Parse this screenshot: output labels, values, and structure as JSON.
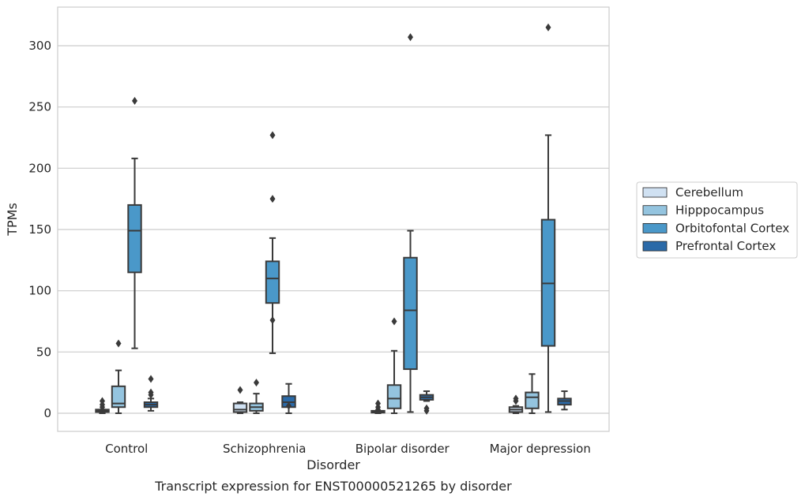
{
  "chart_data": {
    "type": "box",
    "title": "",
    "caption": "Transcript expression for ENST00000521265 by disorder",
    "xlabel": "Disorder",
    "ylabel": "TPMs",
    "ylim": [
      -15,
      332
    ],
    "yticks": [
      0,
      50,
      100,
      150,
      200,
      250,
      300
    ],
    "grid": "horizontal",
    "legend_position": "right",
    "categories": [
      "Control",
      "Schizophrenia",
      "Bipolar disorder",
      "Major depression"
    ],
    "series": [
      {
        "name": "Cerebellum",
        "color": "#d0e1f2",
        "boxes": [
          {
            "whisker_low": 0,
            "q1": 1,
            "median": 2,
            "q3": 3,
            "whisker_high": 3,
            "outliers": [
              5,
              7,
              10
            ]
          },
          {
            "whisker_low": 0,
            "q1": 1,
            "median": 3,
            "q3": 8,
            "whisker_high": 9,
            "outliers": [
              19
            ]
          },
          {
            "whisker_low": 0,
            "q1": 0.5,
            "median": 1,
            "q3": 2,
            "whisker_high": 2,
            "outliers": [
              3,
              5,
              8
            ]
          },
          {
            "whisker_low": 0,
            "q1": 1,
            "median": 3,
            "q3": 5,
            "whisker_high": 6,
            "outliers": [
              10,
              12
            ]
          }
        ]
      },
      {
        "name": "Hipppocampus",
        "color": "#94c4df",
        "boxes": [
          {
            "whisker_low": 0,
            "q1": 5,
            "median": 8,
            "q3": 22,
            "whisker_high": 35,
            "outliers": [
              57
            ]
          },
          {
            "whisker_low": 0,
            "q1": 2,
            "median": 5,
            "q3": 8,
            "whisker_high": 16,
            "outliers": [
              25
            ]
          },
          {
            "whisker_low": 0,
            "q1": 4,
            "median": 12,
            "q3": 23,
            "whisker_high": 51,
            "outliers": [
              75
            ]
          },
          {
            "whisker_low": 0,
            "q1": 4,
            "median": 13,
            "q3": 17,
            "whisker_high": 32,
            "outliers": []
          }
        ]
      },
      {
        "name": "Orbitofontal Cortex",
        "color": "#4a98c9",
        "boxes": [
          {
            "whisker_low": 53,
            "q1": 115,
            "median": 149,
            "q3": 170,
            "whisker_high": 208,
            "outliers": [
              255
            ]
          },
          {
            "whisker_low": 49,
            "q1": 90,
            "median": 110,
            "q3": 124,
            "whisker_high": 143,
            "outliers": [
              76,
              175,
              227
            ]
          },
          {
            "whisker_low": 1,
            "q1": 36,
            "median": 84,
            "q3": 127,
            "whisker_high": 149,
            "outliers": [
              307
            ]
          },
          {
            "whisker_low": 1,
            "q1": 55,
            "median": 106,
            "q3": 158,
            "whisker_high": 227,
            "outliers": [
              315
            ]
          }
        ]
      },
      {
        "name": "Prefrontal Cortex",
        "color": "#2b6aa8",
        "boxes": [
          {
            "whisker_low": 2,
            "q1": 5,
            "median": 7,
            "q3": 9,
            "whisker_high": 12,
            "outliers": [
              15,
              17,
              28
            ]
          },
          {
            "whisker_low": 0,
            "q1": 5,
            "median": 9,
            "q3": 14,
            "whisker_high": 24,
            "outliers": [
              6
            ]
          },
          {
            "whisker_low": 10,
            "q1": 11,
            "median": 13,
            "q3": 15,
            "whisker_high": 18,
            "outliers": [
              2,
              4
            ]
          },
          {
            "whisker_low": 3,
            "q1": 7,
            "median": 10,
            "q3": 12,
            "whisker_high": 18,
            "outliers": []
          }
        ]
      }
    ]
  }
}
